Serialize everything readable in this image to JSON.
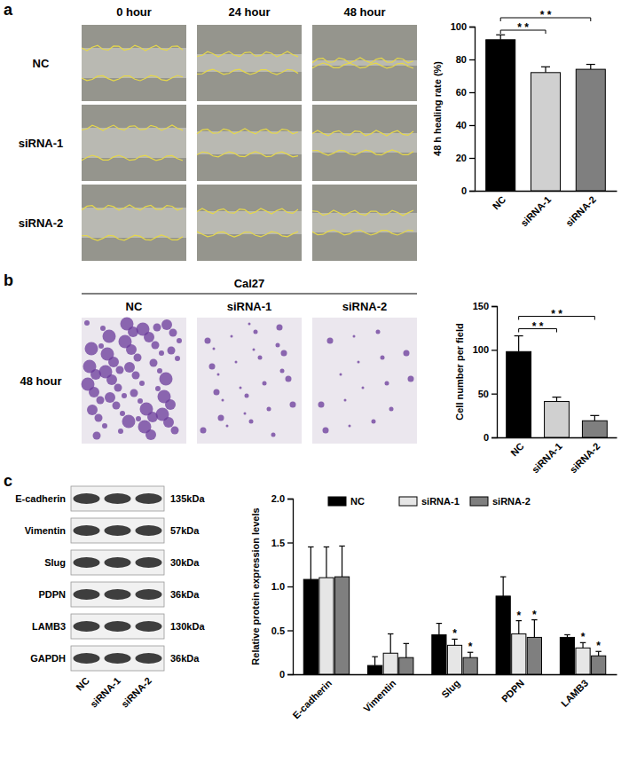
{
  "chart_data": [
    {
      "type": "bar",
      "y_label": "48 h healing rate (%)",
      "categories": [
        "NC",
        "siRNA-1",
        "siRNA-2"
      ],
      "values": [
        92,
        72,
        74
      ],
      "errors": [
        3,
        3.5,
        3
      ],
      "colors": [
        "#000000",
        "#d0d0d0",
        "#7f7f7f"
      ],
      "ylim": [
        0,
        100
      ],
      "yticks": [
        0,
        20,
        40,
        60,
        80,
        100
      ],
      "annotations": [
        {
          "text": "* *",
          "between": [
            "NC",
            "siRNA-1"
          ]
        },
        {
          "text": "* *",
          "between": [
            "NC",
            "siRNA-2"
          ]
        }
      ]
    },
    {
      "type": "bar",
      "y_label": "Cell number per field",
      "categories": [
        "NC",
        "siRNA-1",
        "siRNA-2"
      ],
      "values": [
        98,
        41,
        19
      ],
      "errors": [
        18,
        5,
        6
      ],
      "colors": [
        "#000000",
        "#d0d0d0",
        "#7f7f7f"
      ],
      "ylim": [
        0,
        150
      ],
      "yticks": [
        0,
        50,
        100,
        150
      ],
      "annotations": [
        {
          "text": "* *",
          "between": [
            "NC",
            "siRNA-1"
          ]
        },
        {
          "text": "* *",
          "between": [
            "NC",
            "siRNA-2"
          ]
        }
      ]
    },
    {
      "type": "bar",
      "y_label": "Relative protein expression levels",
      "categories": [
        "E-cadherin",
        "Vimentin",
        "Slug",
        "PDPN",
        "LAMB3"
      ],
      "series": [
        {
          "name": "NC",
          "color": "#000000",
          "values": [
            1.08,
            0.1,
            0.45,
            0.89,
            0.42
          ],
          "errors": [
            0.37,
            0.1,
            0.13,
            0.22,
            0.03
          ]
        },
        {
          "name": "siRNA-1",
          "color": "#e6e6e6",
          "values": [
            1.1,
            0.24,
            0.33,
            0.46,
            0.3
          ],
          "errors": [
            0.35,
            0.22,
            0.07,
            0.15,
            0.06
          ]
        },
        {
          "name": "siRNA-2",
          "color": "#7f7f7f",
          "values": [
            1.11,
            0.19,
            0.19,
            0.42,
            0.21
          ],
          "errors": [
            0.35,
            0.16,
            0.06,
            0.2,
            0.05
          ]
        }
      ],
      "ylim": [
        0,
        2
      ],
      "yticks": [
        0,
        0.5,
        {
          "value": 1,
          "label": "1.0"
        },
        1.5,
        {
          "value": 2,
          "label": "2.0"
        }
      ],
      "legend": "top",
      "annotations": [
        {
          "text": "*",
          "series": "siRNA-1",
          "category": "Slug"
        },
        {
          "text": "*",
          "series": "siRNA-2",
          "category": "Slug"
        },
        {
          "text": "*",
          "series": "siRNA-1",
          "category": "PDPN"
        },
        {
          "text": "*",
          "series": "siRNA-2",
          "category": "PDPN"
        },
        {
          "text": "*",
          "series": "siRNA-1",
          "category": "LAMB3"
        },
        {
          "text": "*",
          "series": "siRNA-2",
          "category": "LAMB3"
        }
      ]
    }
  ],
  "figure": {
    "panel_labels": [
      "a",
      "b",
      "c"
    ],
    "wound_healing": {
      "columns": [
        "0 hour",
        "24 hour",
        "48 hour"
      ],
      "rows": [
        "NC",
        "siRNA-1",
        "siRNA-2"
      ]
    },
    "transwell": {
      "title": "Cal27",
      "row_label": "48 hour",
      "columns": [
        "NC",
        "siRNA-1",
        "siRNA-2"
      ]
    },
    "western_blot": {
      "proteins": [
        "E-cadherin",
        "Vimentin",
        "Slug",
        "PDPN",
        "LAMB3",
        "GAPDH"
      ],
      "sizes": [
        "135kDa",
        "57kDa",
        "30kDa",
        "36kDa",
        "130kDa",
        "36kDa"
      ],
      "lanes": [
        "NC",
        "siRNA-1",
        "siRNA-2"
      ]
    }
  }
}
